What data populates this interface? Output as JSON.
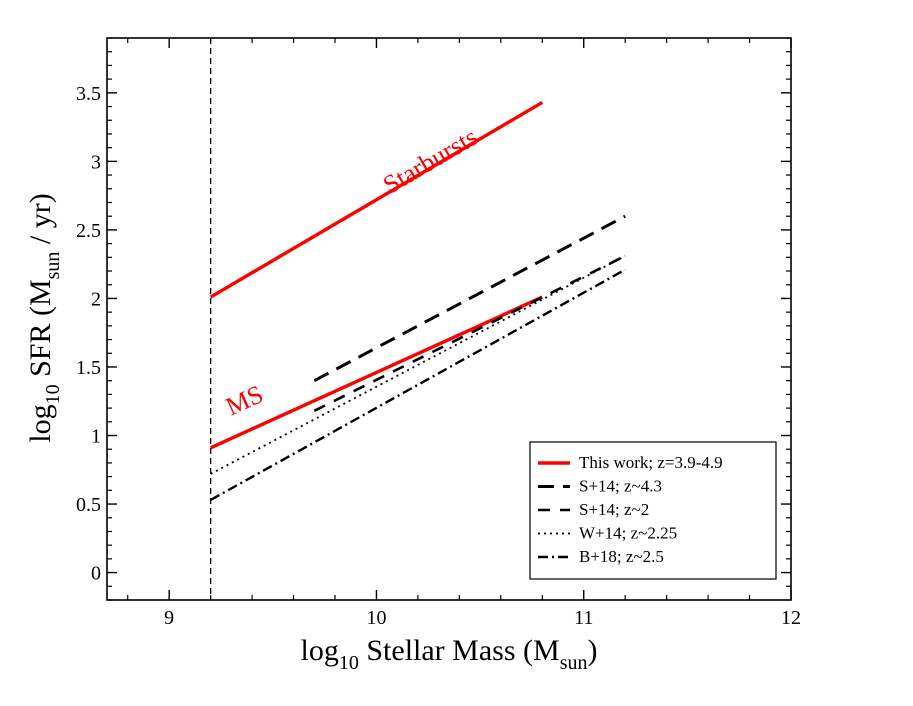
{
  "chart_data": {
    "type": "line",
    "title": "",
    "xlabel": {
      "prefix": "log",
      "sub": "10",
      "main": " Stellar Mass (M",
      "unit_sub": "sun",
      "suffix": ")"
    },
    "ylabel": {
      "prefix": "log",
      "sub": "10",
      "main": " SFR (M",
      "unit_sub": "sun",
      "suffix": " / yr)"
    },
    "xlim": [
      8.7,
      12.0
    ],
    "ylim": [
      -0.2,
      3.9
    ],
    "x_ticks": [
      9,
      10,
      11,
      12
    ],
    "x_tick_labels": [
      "9",
      "10",
      "11",
      "12"
    ],
    "y_ticks": [
      0,
      0.5,
      1,
      1.5,
      2,
      2.5,
      3,
      3.5
    ],
    "y_tick_labels": [
      "0",
      "0.5",
      "1",
      "1.5",
      "2",
      "2.5",
      "3",
      "3.5"
    ],
    "x_minor_step": 0.2,
    "y_minor_step": 0.1,
    "grid": false,
    "mass_limit_line": {
      "x": 9.2,
      "style": "dashed",
      "color": "#000000"
    },
    "series": [
      {
        "name": "Starbursts",
        "in_legend": false,
        "color": "#ff0000",
        "style": "solid",
        "x": [
          9.2,
          10.8
        ],
        "y": [
          2.01,
          3.43
        ]
      },
      {
        "name": "This work; z=3.9-4.9",
        "in_legend": true,
        "color": "#ff0000",
        "style": "solid",
        "x": [
          9.2,
          10.8
        ],
        "y": [
          0.91,
          2.01
        ]
      },
      {
        "name": "S+14; z~4.3",
        "in_legend": true,
        "color": "#000000",
        "style": "dashed-long",
        "x": [
          9.7,
          11.2
        ],
        "y": [
          1.4,
          2.6
        ]
      },
      {
        "name": "S+14; z~2",
        "in_legend": true,
        "color": "#000000",
        "style": "dashed",
        "x": [
          9.7,
          11.2
        ],
        "y": [
          1.18,
          2.31
        ]
      },
      {
        "name": "W+14; z~2.25",
        "in_legend": true,
        "color": "#000000",
        "style": "dotted",
        "x": [
          9.2,
          11.2
        ],
        "y": [
          0.72,
          2.31
        ]
      },
      {
        "name": "B+18; z~2.5",
        "in_legend": true,
        "color": "#000000",
        "style": "dashdot",
        "x": [
          9.2,
          11.2
        ],
        "y": [
          0.53,
          2.21
        ]
      }
    ],
    "annotations": [
      {
        "text": "Starbursts",
        "color": "#ff0000",
        "x": 10.28,
        "y": 2.95,
        "angle_from_series": 0
      },
      {
        "text": "MS",
        "color": "#ff0000",
        "x": 9.38,
        "y": 1.2,
        "angle_from_series": 1
      }
    ],
    "legend_position": "bottom-right"
  }
}
